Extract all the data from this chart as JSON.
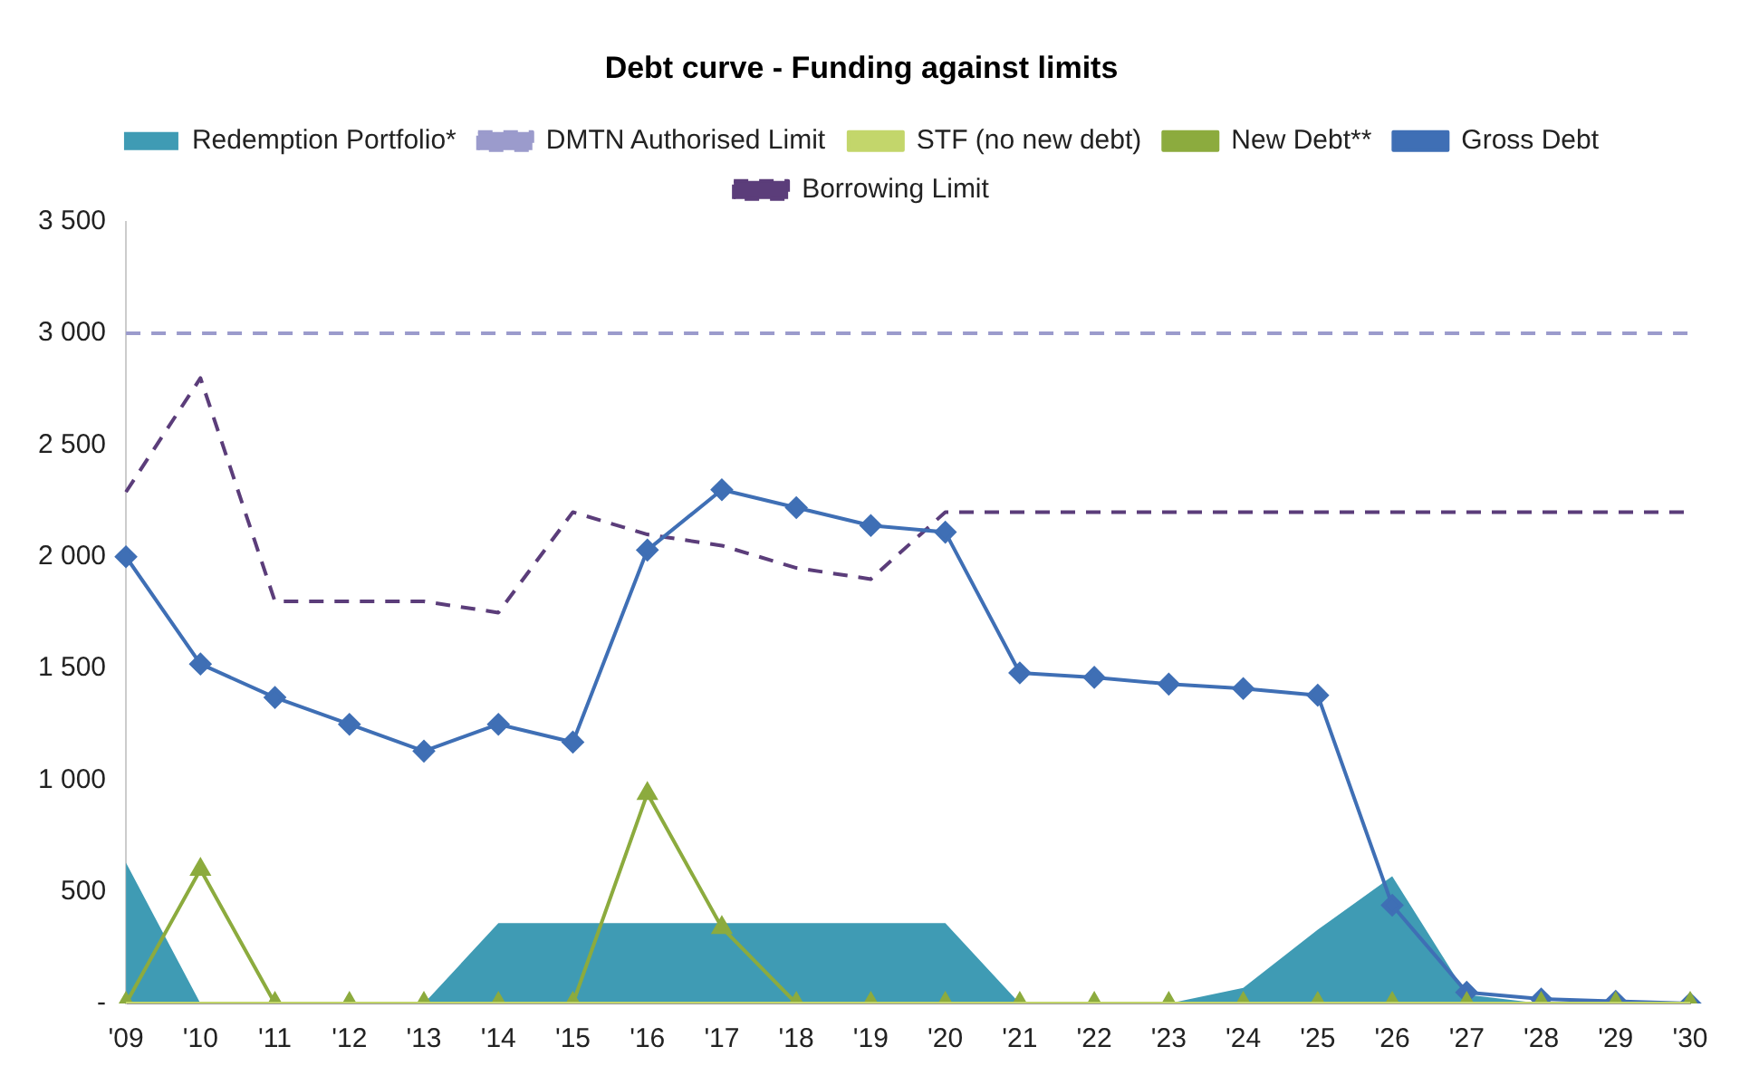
{
  "chart_data": {
    "type": "line",
    "title": "Debt curve - Funding against limits",
    "categories": [
      "'09",
      "'10",
      "'11",
      "'12",
      "'13",
      "'14",
      "'15",
      "'16",
      "'17",
      "'18",
      "'19",
      "'20",
      "'21",
      "'22",
      "'23",
      "'24",
      "'25",
      "'26",
      "'27",
      "'28",
      "'29",
      "'30"
    ],
    "ylim": [
      0,
      3500
    ],
    "yticks": [
      {
        "value": 0,
        "label": "-"
      },
      500,
      {
        "value": 1000,
        "label": "1 000"
      },
      {
        "value": 1500,
        "label": "1 500"
      },
      {
        "value": 2000,
        "label": "2 000"
      },
      {
        "value": 2500,
        "label": "2 500"
      },
      {
        "value": 3000,
        "label": "3 000"
      },
      {
        "value": 3500,
        "label": "3 500"
      }
    ],
    "grid": false,
    "legend": "top",
    "series": [
      {
        "name": "Redemption Portfolio*",
        "type": "area",
        "color": "#3f9bb4",
        "marker": "none",
        "values": [
          630,
          0,
          0,
          0,
          0,
          360,
          360,
          360,
          360,
          360,
          360,
          360,
          0,
          0,
          0,
          70,
          330,
          570,
          40,
          0,
          0,
          0
        ]
      },
      {
        "name": "DMTN Authorised Limit",
        "type": "line",
        "color": "#9b9bcc",
        "marker": "none",
        "line_style": "dashed",
        "values": [
          3000,
          3000,
          3000,
          3000,
          3000,
          3000,
          3000,
          3000,
          3000,
          3000,
          3000,
          3000,
          3000,
          3000,
          3000,
          3000,
          3000,
          3000,
          3000,
          3000,
          3000,
          3000
        ]
      },
      {
        "name": "STF (no new debt)",
        "type": "line",
        "color": "#c3d66b",
        "marker": "none",
        "values": [
          0,
          0,
          0,
          0,
          0,
          0,
          0,
          0,
          0,
          0,
          0,
          0,
          0,
          0,
          0,
          0,
          0,
          0,
          0,
          0,
          0,
          0
        ]
      },
      {
        "name": "New Debt**",
        "type": "line",
        "color": "#8cab3e",
        "marker": "triangle",
        "values": [
          0,
          600,
          0,
          0,
          0,
          0,
          0,
          940,
          340,
          0,
          0,
          0,
          0,
          0,
          0,
          0,
          0,
          0,
          0,
          0,
          0,
          0
        ]
      },
      {
        "name": "Gross Debt",
        "type": "line",
        "color": "#3f6fb5",
        "marker": "diamond",
        "values": [
          2000,
          1520,
          1370,
          1250,
          1130,
          1250,
          1170,
          2030,
          2300,
          2220,
          2140,
          2110,
          1480,
          1460,
          1430,
          1410,
          1380,
          440,
          50,
          20,
          10,
          0
        ]
      },
      {
        "name": "Borrowing Limit",
        "type": "line",
        "color": "#5b3d7a",
        "marker": "none",
        "line_style": "dashed",
        "values": [
          2290,
          2800,
          1800,
          1800,
          1800,
          1750,
          2200,
          2100,
          2050,
          1950,
          1900,
          2200,
          2200,
          2200,
          2200,
          2200,
          2200,
          2200,
          2200,
          2200,
          2200,
          2200
        ]
      }
    ]
  }
}
